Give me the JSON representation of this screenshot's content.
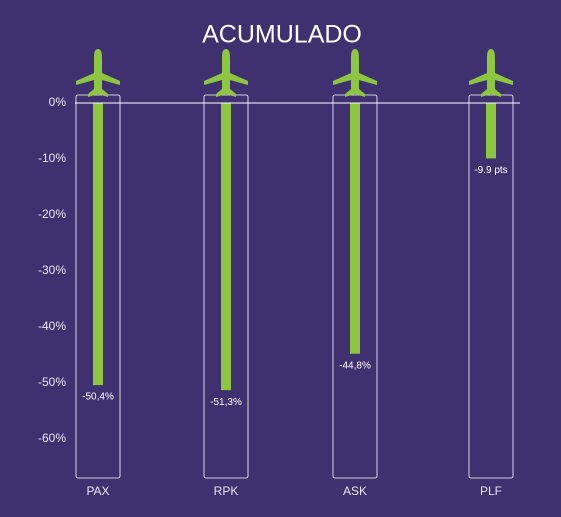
{
  "chart_data": {
    "type": "bar",
    "title": "ACUMULADO",
    "categories": [
      "PAX",
      "RPK",
      "ASK",
      "PLF"
    ],
    "values": [
      -50.4,
      -51.3,
      -44.8,
      -9.9
    ],
    "value_labels": [
      "-50,4%",
      "-51,3%",
      "-44,8%",
      "-9.9 pts"
    ],
    "color": "#8dc63f",
    "ylim": [
      -67,
      0
    ],
    "yticks": [
      {
        "value": 0,
        "label": "0%"
      },
      {
        "value": -10,
        "label": "-10%"
      },
      {
        "value": -20,
        "label": "-20%"
      },
      {
        "value": -30,
        "label": "-30%"
      },
      {
        "value": -40,
        "label": "-40%"
      },
      {
        "value": -50,
        "label": "-50%"
      },
      {
        "value": -60,
        "label": "-60%"
      }
    ],
    "grid": false
  }
}
